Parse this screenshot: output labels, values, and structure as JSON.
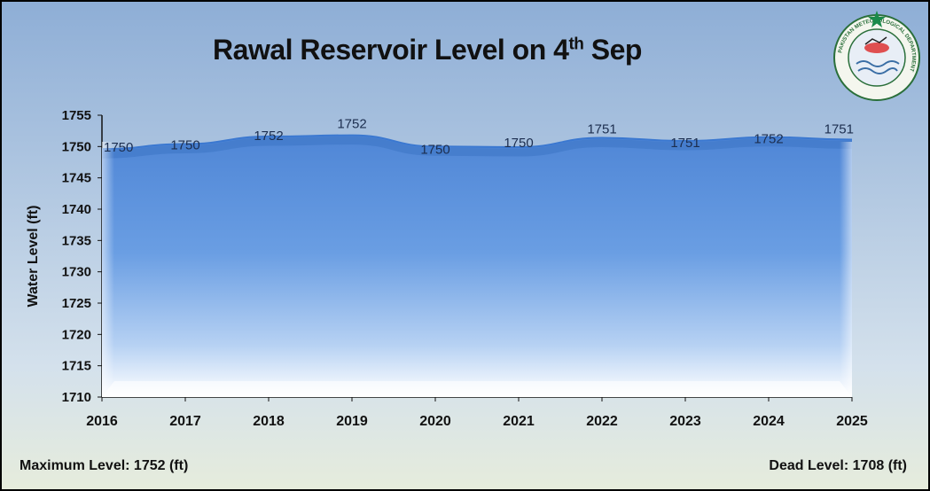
{
  "chart_data": {
    "type": "area",
    "title_main": "Rawal Reservoir Level on 4",
    "title_sup": "th",
    "title_end": " Sep",
    "ylabel": "Water Level (ft)",
    "xlabel": "",
    "x": [
      "2016",
      "2017",
      "2018",
      "2019",
      "2020",
      "2021",
      "2022",
      "2023",
      "2024",
      "2025"
    ],
    "values": [
      1749.6,
      1750.4,
      1751.6,
      1751.8,
      1750.0,
      1749.9,
      1751.4,
      1750.9,
      1751.5,
      1751.1
    ],
    "data_labels": [
      "1750",
      "1750",
      "1752",
      "1752",
      "1750",
      "1750",
      "1751",
      "1751",
      "1752",
      "1751"
    ],
    "ylim": [
      1710,
      1755
    ],
    "yticks": [
      1710,
      1715,
      1720,
      1725,
      1730,
      1735,
      1740,
      1745,
      1750,
      1755
    ],
    "grid": false,
    "legend": "none",
    "series_color_top": "#5b8fd9",
    "series_color_bottom": "#ffffff"
  },
  "footer": {
    "max_level": "Maximum Level: 1752 (ft)",
    "dead_level": "Dead Level: 1708 (ft)"
  },
  "logo": {
    "ring_text": "PAKISTAN METEOROLOGICAL DEPARTMENT",
    "star_color": "#1a8a4a",
    "ring_color": "#2a6f3a"
  }
}
